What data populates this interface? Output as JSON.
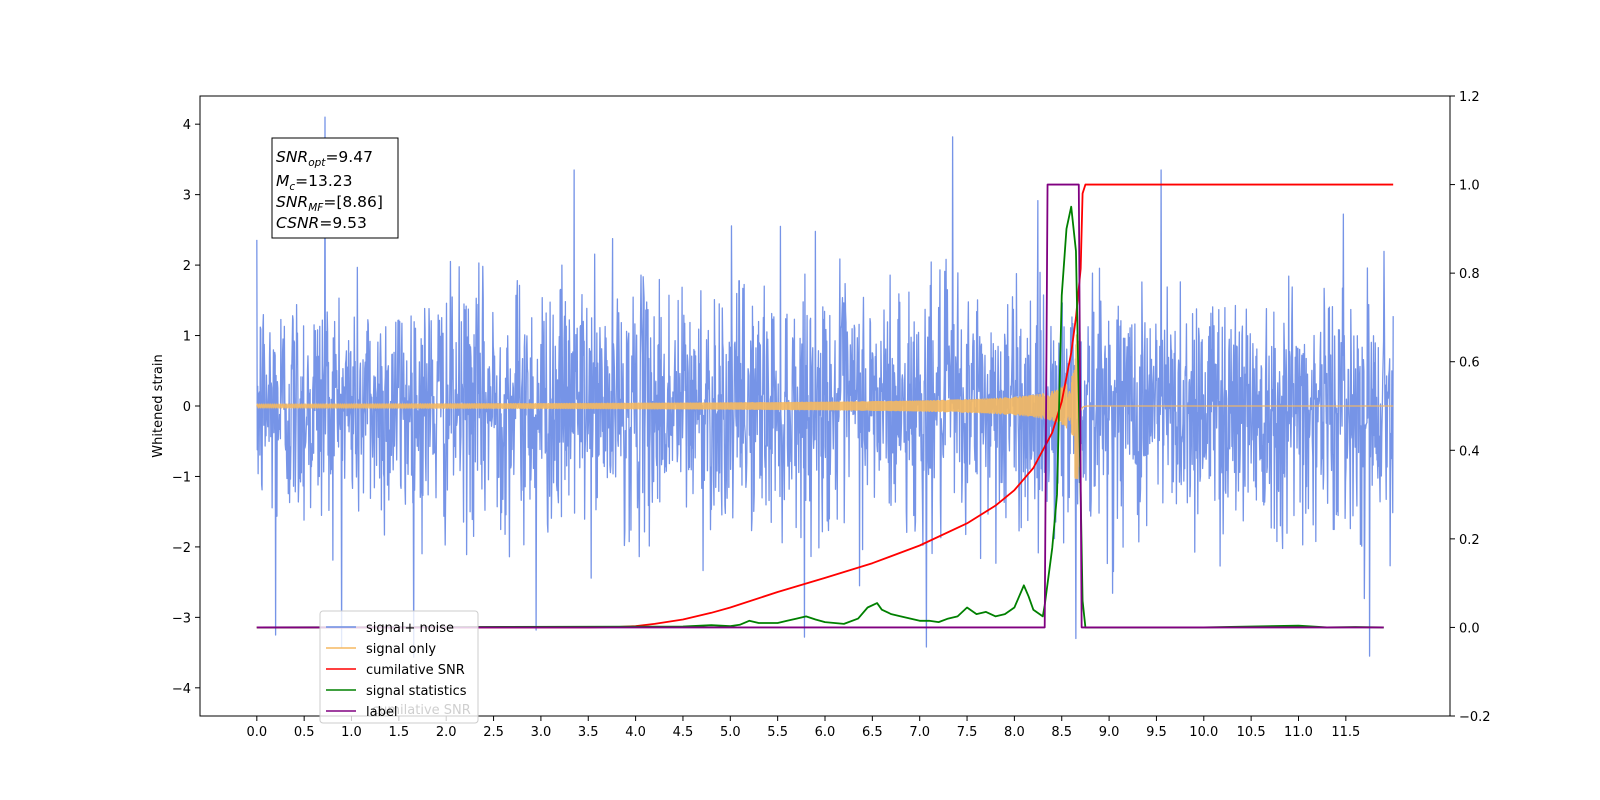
{
  "chart_data": {
    "type": "line",
    "ylabel": "Whitened strain",
    "x_ticks": [
      "0.0",
      "0.5",
      "1.0",
      "1.5",
      "2.0",
      "2.5",
      "3.0",
      "3.5",
      "4.0",
      "4.5",
      "5.0",
      "5.5",
      "6.0",
      "6.5",
      "7.0",
      "7.5",
      "8.0",
      "8.5",
      "9.0",
      "9.5",
      "10.0",
      "10.5",
      "11.0",
      "11.5"
    ],
    "x_tick_values": [
      0,
      0.5,
      1,
      1.5,
      2,
      2.5,
      3,
      3.5,
      4,
      4.5,
      5,
      5.5,
      6,
      6.5,
      7,
      7.5,
      8,
      8.5,
      9,
      9.5,
      10,
      10.5,
      11,
      11.5
    ],
    "xlim": [
      -0.6,
      12.6
    ],
    "ylim_left": [
      -4.4,
      4.4
    ],
    "yticks_left": [
      "−4",
      "−3",
      "−2",
      "−1",
      "0",
      "1",
      "2",
      "3",
      "4"
    ],
    "ytick_values_left": [
      -4,
      -3,
      -2,
      -1,
      0,
      1,
      2,
      3,
      4
    ],
    "ylim_right": [
      -0.2,
      1.2
    ],
    "yticks_right": [
      "−0.2",
      "0.0",
      "0.2",
      "0.4",
      "0.6",
      "0.8",
      "1.0",
      "1.2"
    ],
    "ytick_values_right": [
      -0.2,
      0,
      0.2,
      0.4,
      0.6,
      0.8,
      1.0,
      1.2
    ],
    "annotation": [
      {
        "base": "SNR",
        "sub": "opt",
        "value": "=9.47"
      },
      {
        "base": "M",
        "sub": "c",
        "value": "=13.23"
      },
      {
        "base": "SNR",
        "sub": "MF",
        "value": "=[8.86]"
      },
      {
        "base": "CSNR",
        "sub": "",
        "value": "=9.53"
      }
    ],
    "legend": {
      "placement": "lower-left",
      "entries": [
        "signal+ noise",
        "signal only",
        "cumilative SNR",
        "signal statistics",
        "label"
      ],
      "overlapped_text": "cumilative SNR"
    },
    "colors": {
      "noise": "#6f8ee6",
      "signal": "#f5b860",
      "cumulative_snr": "#ff0000",
      "signal_statistics": "#008000",
      "label": "#800080"
    },
    "series": [
      {
        "name": "signal+ noise",
        "axis": "left",
        "kind": "noise",
        "x_range": [
          0,
          12
        ],
        "std": 0.85,
        "peaks": [
          [
            0.72,
            4.1
          ],
          [
            7.35,
            3.82
          ],
          [
            9.55,
            3.35
          ],
          [
            3.35,
            3.35
          ],
          [
            8.65,
            -3.3
          ],
          [
            11.75,
            -3.55
          ],
          [
            7.07,
            -3.42
          ],
          [
            2.95,
            -3.18
          ],
          [
            0.2,
            -3.25
          ]
        ]
      },
      {
        "name": "signal only",
        "axis": "left",
        "kind": "chirp",
        "x_range": [
          0,
          12
        ],
        "merger_time": 8.7,
        "peak_amplitude": 1.05
      },
      {
        "name": "cumilative SNR",
        "axis": "right",
        "x": [
          0,
          3.5,
          3.8,
          4.0,
          4.2,
          4.5,
          4.8,
          5.0,
          5.5,
          6.0,
          6.5,
          7.0,
          7.5,
          7.8,
          8.0,
          8.2,
          8.4,
          8.5,
          8.6,
          8.65,
          8.7,
          8.72,
          8.75,
          12.0
        ],
        "y": [
          0,
          0,
          0.001,
          0.003,
          0.008,
          0.018,
          0.033,
          0.045,
          0.08,
          0.112,
          0.145,
          0.185,
          0.235,
          0.275,
          0.31,
          0.36,
          0.44,
          0.51,
          0.62,
          0.7,
          0.81,
          0.98,
          1.0,
          1.0
        ]
      },
      {
        "name": "signal statistics",
        "axis": "right",
        "x": [
          0,
          4.5,
          4.8,
          5.0,
          5.1,
          5.2,
          5.3,
          5.5,
          5.6,
          5.7,
          5.8,
          5.9,
          6.0,
          6.2,
          6.35,
          6.45,
          6.55,
          6.6,
          6.7,
          6.8,
          7.0,
          7.1,
          7.2,
          7.3,
          7.4,
          7.5,
          7.6,
          7.7,
          7.8,
          7.9,
          8.0,
          8.1,
          8.15,
          8.2,
          8.3,
          8.32,
          8.4,
          8.45,
          8.5,
          8.55,
          8.6,
          8.65,
          8.7,
          8.72,
          8.75,
          10.0,
          10.5,
          11.0,
          11.3,
          11.6,
          11.9
        ],
        "y": [
          0,
          0.002,
          0.005,
          0.003,
          0.006,
          0.015,
          0.01,
          0.01,
          0.015,
          0.02,
          0.025,
          0.018,
          0.012,
          0.008,
          0.02,
          0.045,
          0.055,
          0.04,
          0.03,
          0.025,
          0.015,
          0.015,
          0.012,
          0.02,
          0.025,
          0.045,
          0.03,
          0.035,
          0.025,
          0.03,
          0.045,
          0.095,
          0.07,
          0.04,
          0.025,
          0.05,
          0.18,
          0.3,
          0.75,
          0.9,
          0.95,
          0.85,
          0.3,
          0.06,
          0.0,
          0.0,
          0.002,
          0.004,
          0.0,
          0.001,
          0.0
        ]
      },
      {
        "name": "label",
        "axis": "right",
        "x": [
          0,
          8.32,
          8.35,
          8.68,
          8.71,
          11.9
        ],
        "y": [
          0,
          0,
          1,
          1,
          0,
          0
        ]
      }
    ]
  }
}
